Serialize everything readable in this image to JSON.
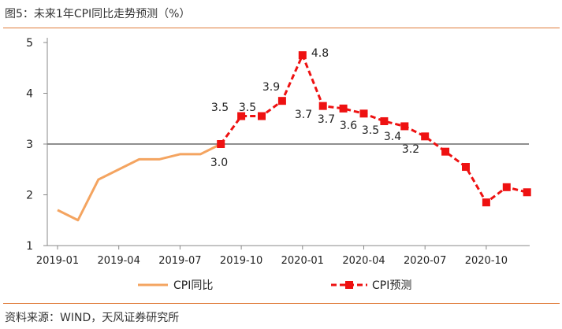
{
  "header": {
    "title": "图5：未来1年CPI同比走势预测（%）"
  },
  "footer": {
    "source": "资料来源：WIND，天风证券研究所"
  },
  "colors": {
    "actual": "#f4a460",
    "forecast": "#ee1111",
    "refline": "#7f7f7f",
    "axis": "#888888",
    "rule": "#e07b39"
  },
  "chart_data": {
    "type": "line",
    "title": "未来1年CPI同比走势预测（%）",
    "xlabel": "",
    "ylabel": "",
    "ylim": [
      1,
      5
    ],
    "yticks": [
      "1",
      "2",
      "3",
      "4",
      "5"
    ],
    "x_start": "2019-01",
    "x_end": "2020-12",
    "xtick_labels": [
      "2019-01",
      "2019-04",
      "2019-07",
      "2019-10",
      "2020-01",
      "2020-04",
      "2020-07",
      "2020-10"
    ],
    "reference_line": {
      "y": 3
    },
    "series": [
      {
        "name": "CPI同比",
        "style": "solid",
        "months": [
          0,
          1,
          2,
          3,
          4,
          5,
          6,
          7,
          8
        ],
        "values": [
          1.7,
          1.5,
          2.3,
          2.5,
          2.7,
          2.7,
          2.8,
          2.8,
          3.0
        ]
      },
      {
        "name": "CPI预测",
        "style": "dashed-square",
        "months": [
          8,
          9,
          10,
          11,
          12,
          13,
          14,
          15,
          16,
          17,
          18,
          19,
          20,
          21,
          22,
          23
        ],
        "values": [
          3.0,
          3.55,
          3.55,
          3.85,
          4.75,
          3.75,
          3.7,
          3.6,
          3.45,
          3.35,
          3.15,
          2.85,
          2.55,
          1.85,
          2.15,
          2.05
        ]
      }
    ],
    "data_labels": [
      "3.0",
      "3.5",
      "3.5",
      "3.9",
      "4.8",
      "3.7",
      "3.7",
      "3.6",
      "3.5",
      "3.4",
      "3.2"
    ],
    "legend": [
      "CPI同比",
      "CPI预测"
    ]
  }
}
